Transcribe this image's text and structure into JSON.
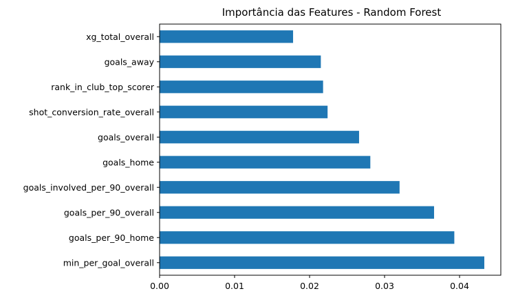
{
  "chart_data": {
    "type": "bar",
    "orientation": "horizontal",
    "title": "Importância das Features - Random Forest",
    "xlabel": "",
    "ylabel": "",
    "categories": [
      "min_per_goal_overall",
      "goals_per_90_home",
      "goals_per_90_overall",
      "goals_involved_per_90_overall",
      "goals_home",
      "goals_overall",
      "shot_conversion_rate_overall",
      "rank_in_club_top_scorer",
      "goals_away",
      "xg_total_overall"
    ],
    "values": [
      0.0433,
      0.0393,
      0.0366,
      0.032,
      0.0281,
      0.0266,
      0.0224,
      0.0218,
      0.0215,
      0.0178
    ],
    "xlim": [
      0,
      0.0455
    ],
    "xticks": [
      "0.00",
      "0.01",
      "0.02",
      "0.03",
      "0.04"
    ],
    "xtick_values": [
      0,
      0.01,
      0.02,
      0.03,
      0.04
    ],
    "bar_color": "#1f77b4",
    "grid": false,
    "legend": "none"
  }
}
